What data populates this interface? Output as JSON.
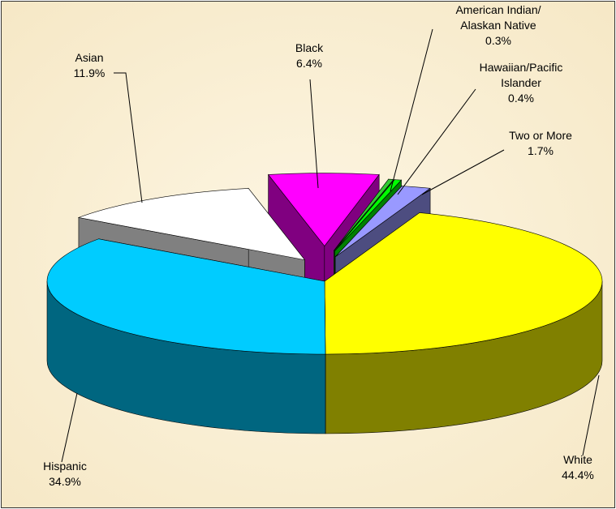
{
  "chart_data": {
    "type": "pie3d",
    "categories": [
      "White",
      "Hispanic",
      "Asian",
      "Black",
      "American Indian/\nAlaskan Native",
      "Hawaiian/Pacific\nIslander",
      "Two or More"
    ],
    "values": [
      44.4,
      34.9,
      11.9,
      6.4,
      0.3,
      0.4,
      1.7
    ],
    "value_labels": [
      "44.4%",
      "34.9%",
      "11.9%",
      "6.4%",
      "0.3%",
      "0.4%",
      "1.7%"
    ],
    "colors": [
      "#ffff00",
      "#00ccff",
      "#ffffff",
      "#ff00ff",
      "#33cc33",
      "#00ff00",
      "#9999ff"
    ]
  }
}
